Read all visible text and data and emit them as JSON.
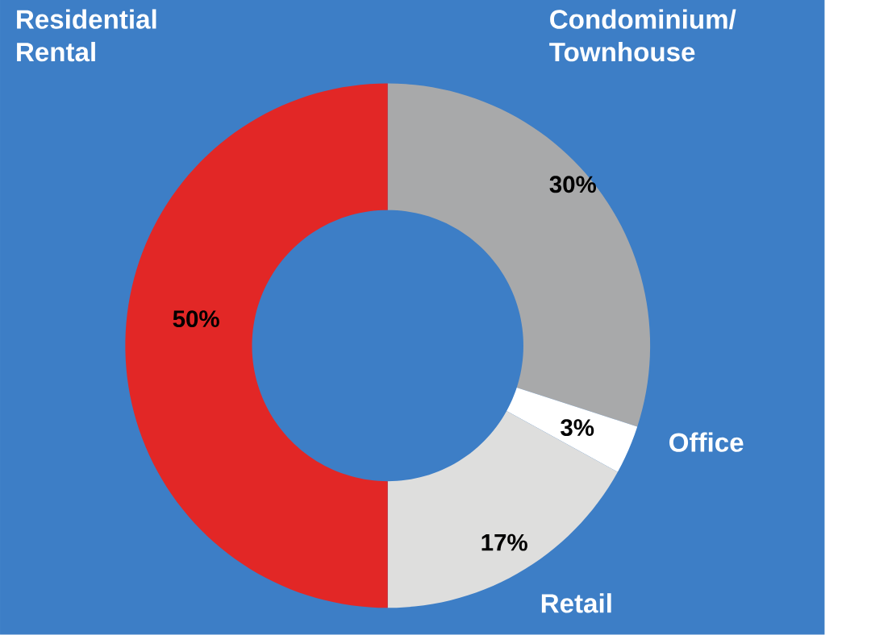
{
  "chart_data": {
    "type": "donut",
    "categories": [
      "Condominium/ Townhouse",
      "Office",
      "Retail",
      "Residential Rental"
    ],
    "values": [
      30,
      3,
      17,
      50
    ],
    "value_labels": [
      "30%",
      "3%",
      "17%",
      "50%"
    ],
    "colors": [
      "#a8a9aa",
      "#ffffff",
      "#dededd",
      "#e22726"
    ]
  }
}
